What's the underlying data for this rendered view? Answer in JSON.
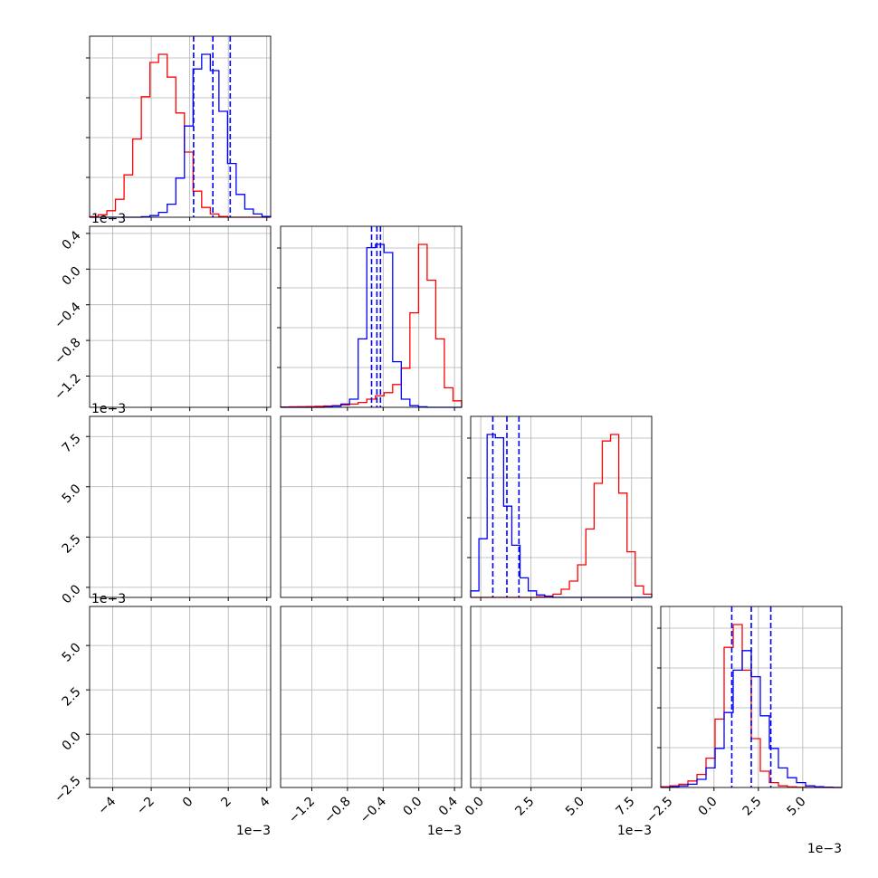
{
  "figure": {
    "background": "#ffffff",
    "colors": {
      "series_a": "#ff0000",
      "series_b": "#0000ff",
      "grid": "#b0b0b0",
      "frame": "#000000"
    }
  },
  "chart_data": {
    "type": "corner",
    "grid": true,
    "legend": "none",
    "series": [
      {
        "color": "#ff0000",
        "stats": [
          {
            "median": -2.1,
            "sd": 0.9
          },
          {
            "median": 0.05,
            "sd": 0.1
          },
          {
            "median": 6.6,
            "sd": 0.6
          },
          {
            "median": 1.9,
            "sd": 0.6
          }
        ]
      },
      {
        "color": "#0000ff",
        "stats": [
          {
            "median": 1.2,
            "sd": 0.9
          },
          {
            "median": -0.47,
            "sd": 0.05
          },
          {
            "median": 1.3,
            "sd": 0.65
          },
          {
            "median": 2.1,
            "sd": 1.0
          }
        ]
      }
    ],
    "quantile_lines": {
      "color": "#0000ff",
      "style": "dashed",
      "values": [
        [
          0.2,
          1.2,
          2.1
        ],
        [
          -0.53,
          -0.47,
          -0.43
        ],
        [
          0.6,
          1.3,
          1.9
        ],
        [
          1.0,
          2.1,
          3.2
        ]
      ]
    },
    "ranges": [
      [
        -5.2,
        4.2
      ],
      [
        -1.55,
        0.48
      ],
      [
        -0.5,
        8.5
      ],
      [
        -3.0,
        7.2
      ]
    ],
    "ticks": [
      [
        "−4",
        "−2",
        "0",
        "2",
        "4"
      ],
      [
        "−1.2",
        "−0.8",
        "−0.4",
        "0.0",
        "0.4"
      ],
      [
        "0.0",
        "2.5",
        "5.0",
        "7.5"
      ],
      [
        "−2.5",
        "0.0",
        "2.5",
        "5.0"
      ]
    ],
    "tick_values": [
      [
        -4,
        -2,
        0,
        2,
        4
      ],
      [
        -1.2,
        -0.8,
        -0.4,
        0.0,
        0.4
      ],
      [
        0.0,
        2.5,
        5.0,
        7.5
      ],
      [
        -2.5,
        0.0,
        2.5,
        5.0
      ]
    ],
    "offset_text": "1e−3",
    "histograms": [
      {
        "red": [
          0.4,
          1.5,
          4,
          11,
          26,
          48,
          74,
          95,
          100,
          86,
          64,
          40,
          16,
          6,
          2,
          0.5,
          0,
          0,
          0,
          0,
          0
        ],
        "blue": [
          0,
          0,
          0,
          0,
          0,
          0,
          0.3,
          1,
          3,
          8,
          24,
          56,
          91,
          100,
          90,
          65,
          33,
          14,
          5,
          2,
          0.5
        ]
      },
      {
        "red": [
          0.2,
          0.3,
          0.4,
          0.5,
          0.6,
          0.8,
          1,
          1.5,
          2,
          3,
          5,
          7,
          9,
          14,
          24,
          58,
          100,
          78,
          42,
          12,
          4
        ],
        "blue": [
          0,
          0,
          0,
          0,
          0,
          0.3,
          0.8,
          2,
          5,
          42,
          98,
          100,
          95,
          28,
          5,
          1,
          0.3,
          0,
          0,
          0,
          0
        ]
      },
      {
        "red": [
          0,
          0,
          0,
          0,
          0,
          0,
          0,
          0,
          0.3,
          0.8,
          2,
          5,
          10,
          20,
          42,
          70,
          96,
          100,
          64,
          28,
          7,
          2
        ],
        "blue": [
          4,
          36,
          100,
          98,
          56,
          32,
          12,
          4,
          1.5,
          0.5,
          0,
          0,
          0,
          0,
          0,
          0,
          0,
          0,
          0,
          0,
          0,
          0
        ]
      },
      {
        "red": [
          0.5,
          1,
          2,
          4,
          8,
          18,
          42,
          86,
          100,
          72,
          30,
          10,
          3,
          1,
          0.4,
          0.1,
          0,
          0,
          0,
          0
        ],
        "blue": [
          0,
          0.5,
          1,
          2,
          5,
          12,
          24,
          46,
          72,
          84,
          68,
          44,
          24,
          12,
          6,
          3,
          1,
          0.5,
          0.2,
          0
        ]
      }
    ]
  }
}
